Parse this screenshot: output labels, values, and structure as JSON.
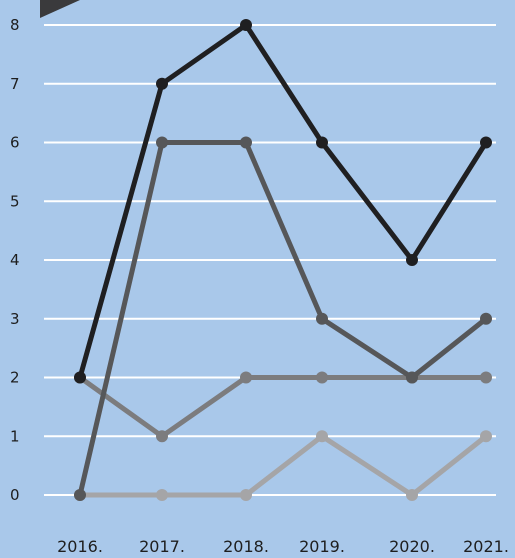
{
  "chart_data": {
    "type": "line",
    "title": "",
    "xlabel": "",
    "ylabel": "",
    "categories": [
      "2016.",
      "2017.",
      "2018.",
      "2019.",
      "2020.",
      "2021."
    ],
    "yticks": [
      "0",
      "1",
      "2",
      "3",
      "4",
      "5",
      "6",
      "7",
      "8"
    ],
    "ylim": [
      0,
      8
    ],
    "grid": true,
    "legend": "none",
    "series": [
      {
        "color": "#1f1f21",
        "values": [
          2,
          7,
          8,
          6,
          4,
          6
        ]
      },
      {
        "color": "#565759",
        "values": [
          0,
          6,
          6,
          3,
          2,
          3
        ]
      },
      {
        "color": "#7c7c7e",
        "values": [
          2,
          1,
          2,
          2,
          2,
          2
        ]
      },
      {
        "color": "#a5a5a7",
        "values": [
          0,
          0,
          0,
          1,
          0,
          1
        ]
      }
    ]
  }
}
